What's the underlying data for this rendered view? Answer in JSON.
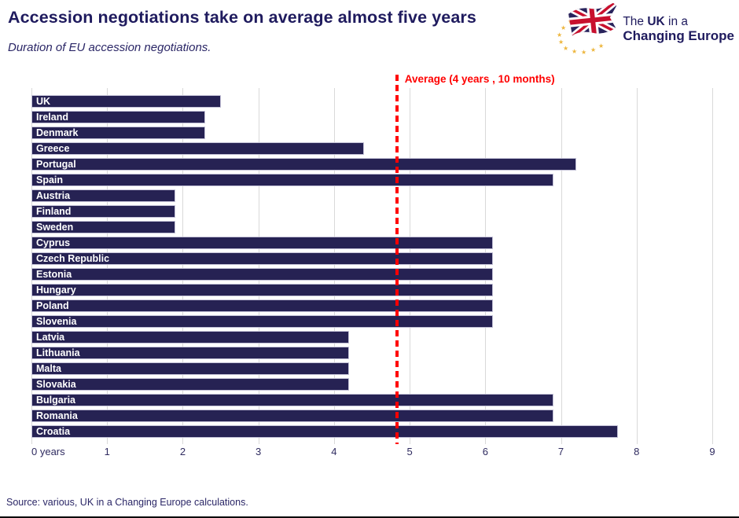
{
  "header": {
    "title": "Accession negotiations take on average almost five years",
    "subtitle": "Duration of EU accession negotiations.",
    "logo": {
      "line1_pre": "The ",
      "line1_bold": "UK",
      "line1_post": " in a",
      "line2": "Changing Europe"
    }
  },
  "chart_data": {
    "type": "bar",
    "orientation": "horizontal",
    "categories": [
      "UK",
      "Ireland",
      "Denmark",
      "Greece",
      "Portugal",
      "Spain",
      "Austria",
      "Finland",
      "Sweden",
      "Cyprus",
      "Czech Republic",
      "Estonia",
      "Hungary",
      "Poland",
      "Slovenia",
      "Latvia",
      "Lithuania",
      "Malta",
      "Slovakia",
      "Bulgaria",
      "Romania",
      "Croatia"
    ],
    "values": [
      2.5,
      2.3,
      2.3,
      4.4,
      7.2,
      6.9,
      1.9,
      1.9,
      1.9,
      6.1,
      6.1,
      6.1,
      6.1,
      6.1,
      6.1,
      4.2,
      4.2,
      4.2,
      4.2,
      6.9,
      6.9,
      7.75
    ],
    "title": "Accession negotiations take on average almost five years",
    "xlabel": "years",
    "ylabel": "",
    "xlim": [
      0,
      9
    ],
    "x_ticks": [
      0,
      1,
      2,
      3,
      4,
      5,
      6,
      7,
      8,
      9
    ],
    "x_tick_labels": [
      "0 years",
      "1",
      "2",
      "3",
      "4",
      "5",
      "6",
      "7",
      "8",
      "9"
    ],
    "grid": true,
    "bar_color": "#262253",
    "average_line": {
      "value": 4.83,
      "label": "Average (4 years , 10 months)",
      "color": "#ff0000"
    }
  },
  "footer": {
    "source": "Source: various, UK in a Changing Europe calculations."
  },
  "colors": {
    "bar": "#262253",
    "bar_outline": "#c2c0d6",
    "gridline": "#d9d9d9",
    "title_text": "#1f1b5e",
    "average_red": "#ff0000",
    "eu_star_gold": "#edb63e",
    "flag_red": "#c8102e",
    "flag_blue": "#29235c"
  }
}
